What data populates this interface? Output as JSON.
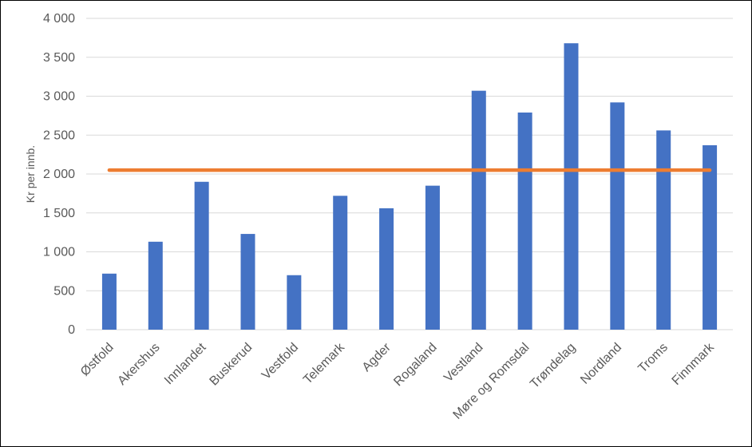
{
  "chart_data": {
    "type": "bar",
    "ylabel": "Kr per innb.",
    "ylim": [
      0,
      4000
    ],
    "y_ticks": [
      0,
      500,
      1000,
      1500,
      2000,
      2500,
      3000,
      3500,
      4000
    ],
    "y_tick_labels": [
      "0",
      "500",
      "1 000",
      "1 500",
      "2 000",
      "2 500",
      "3 000",
      "3 500",
      "4 000"
    ],
    "grid": true,
    "categories": [
      "Østfold",
      "Akershus",
      "Innlandet",
      "Buskerud",
      "Vestfold",
      "Telemark",
      "Agder",
      "Rogaland",
      "Vestland",
      "Møre og Romsdal",
      "Trøndelag",
      "Nordland",
      "Troms",
      "Finnmark"
    ],
    "series": [
      {
        "type": "bar",
        "color": "#4472C4",
        "values": [
          720,
          1130,
          1900,
          1230,
          700,
          1720,
          1560,
          1850,
          3070,
          2790,
          3680,
          2920,
          2560,
          2370
        ]
      },
      {
        "type": "line",
        "color": "#ED7D31",
        "values": [
          2050,
          2050,
          2050,
          2050,
          2050,
          2050,
          2050,
          2050,
          2050,
          2050,
          2050,
          2050,
          2050,
          2050
        ]
      }
    ]
  }
}
